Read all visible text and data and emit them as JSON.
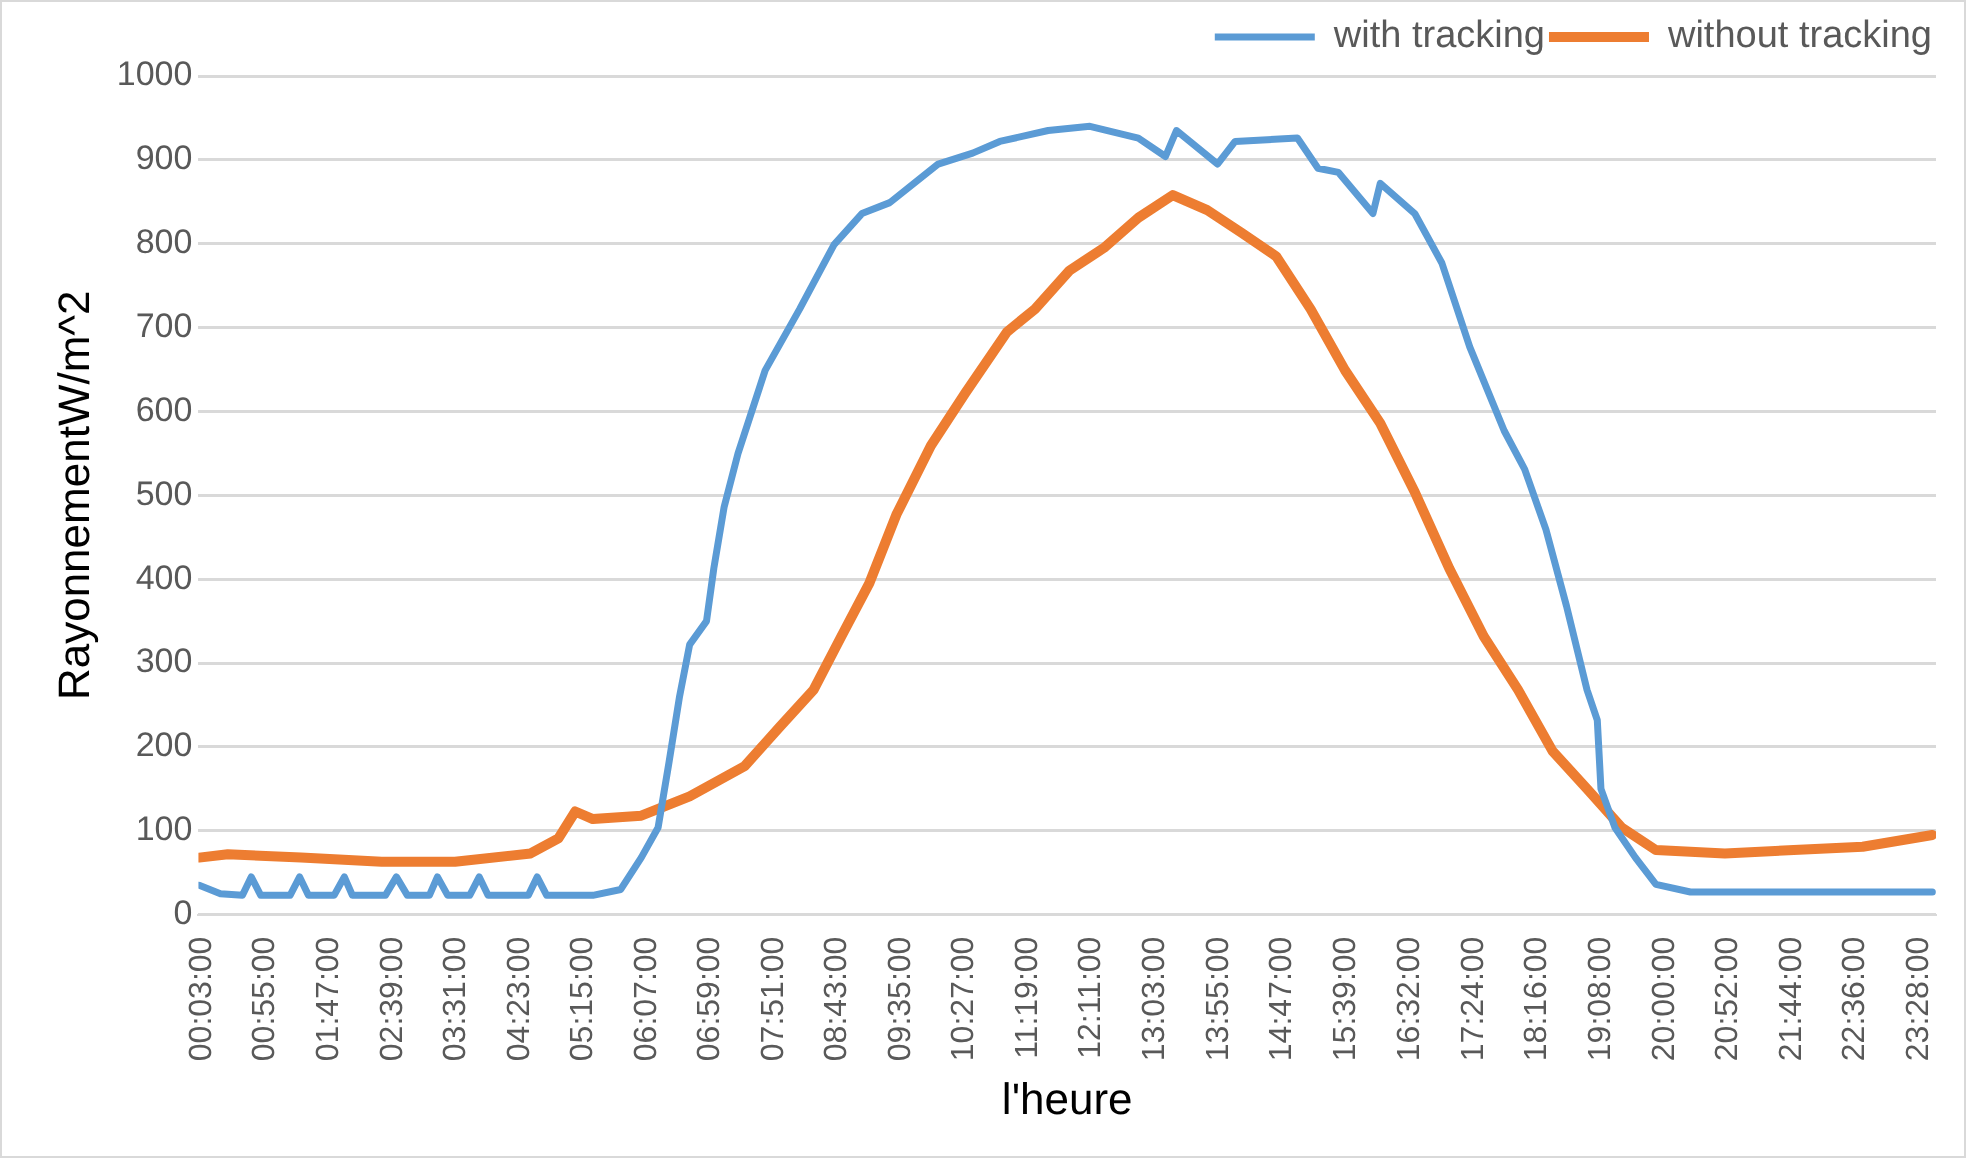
{
  "chart_data": {
    "type": "line",
    "xlabel": "l'heure",
    "ylabel": "RayonnementW/m^2",
    "xlim": [
      0,
      23.7
    ],
    "ylim": [
      0,
      1000
    ],
    "xticks": [
      {
        "value": 0.05,
        "label": "00:03:00"
      },
      {
        "value": 0.9167,
        "label": "00:55:00"
      },
      {
        "value": 1.7833,
        "label": "01:47:00"
      },
      {
        "value": 2.65,
        "label": "02:39:00"
      },
      {
        "value": 3.5167,
        "label": "03:31:00"
      },
      {
        "value": 4.3833,
        "label": "04:23:00"
      },
      {
        "value": 5.25,
        "label": "05:15:00"
      },
      {
        "value": 6.1167,
        "label": "06:07:00"
      },
      {
        "value": 6.9833,
        "label": "06:59:00"
      },
      {
        "value": 7.85,
        "label": "07:51:00"
      },
      {
        "value": 8.7167,
        "label": "08:43:00"
      },
      {
        "value": 9.5833,
        "label": "09:35:00"
      },
      {
        "value": 10.45,
        "label": "10:27:00"
      },
      {
        "value": 11.3167,
        "label": "11:19:00"
      },
      {
        "value": 12.1833,
        "label": "12:11:00"
      },
      {
        "value": 13.05,
        "label": "13:03:00"
      },
      {
        "value": 13.9167,
        "label": "13:55:00"
      },
      {
        "value": 14.7833,
        "label": "14:47:00"
      },
      {
        "value": 15.65,
        "label": "15:39:00"
      },
      {
        "value": 16.5333,
        "label": "16:32:00"
      },
      {
        "value": 17.4,
        "label": "17:24:00"
      },
      {
        "value": 18.2667,
        "label": "18:16:00"
      },
      {
        "value": 19.1333,
        "label": "19:08:00"
      },
      {
        "value": 20,
        "label": "20:00:00"
      },
      {
        "value": 20.8667,
        "label": "20:52:00"
      },
      {
        "value": 21.7333,
        "label": "21:44:00"
      },
      {
        "value": 22.6,
        "label": "22:36:00"
      },
      {
        "value": 23.4667,
        "label": "23:28:00"
      }
    ],
    "yticks": [
      0,
      100,
      200,
      300,
      400,
      500,
      600,
      700,
      800,
      900,
      1000
    ],
    "grid": "y",
    "legend": "top right",
    "marker": "none",
    "line_style": "solid",
    "series": [
      {
        "name": "with tracking",
        "color": "#5b9bd5",
        "x": [
          0.01,
          0.3,
          0.6,
          0.72,
          0.85,
          1.25,
          1.38,
          1.5,
          1.85,
          1.99,
          2.1,
          2.55,
          2.7,
          2.85,
          3.15,
          3.26,
          3.4,
          3.7,
          3.83,
          3.95,
          4.5,
          4.62,
          4.75,
          5.38,
          5.76,
          6.04,
          6.27,
          6.41,
          6.56,
          6.7,
          6.93,
          7.03,
          7.17,
          7.36,
          7.73,
          8.2,
          8.67,
          9.05,
          9.43,
          10.09,
          10.56,
          10.93,
          11.59,
          12.16,
          12.82,
          13.19,
          13.34,
          13.9,
          14.14,
          14.99,
          15.27,
          15.55,
          16.02,
          16.12,
          16.59,
          16.96,
          17.34,
          17.81,
          18.09,
          18.38,
          18.66,
          18.94,
          19.08,
          19.13,
          19.32,
          19.6,
          19.88,
          20.35,
          23.65
        ],
        "values": [
          35,
          25,
          23,
          45,
          23,
          23,
          45,
          23,
          23,
          45,
          23,
          23,
          45,
          23,
          23,
          45,
          23,
          23,
          45,
          23,
          23,
          45,
          23,
          23,
          30,
          68,
          104,
          177,
          259,
          322,
          350,
          413,
          486,
          550,
          649,
          722,
          799,
          836,
          849,
          895,
          908,
          922,
          935,
          940,
          926,
          904,
          935,
          895,
          922,
          926,
          890,
          885,
          836,
          872,
          836,
          777,
          677,
          577,
          531,
          459,
          368,
          268,
          232,
          150,
          104,
          68,
          36,
          27,
          27
        ]
      },
      {
        "name": "without tracking",
        "color": "#ed7d31",
        "x": [
          0.01,
          0.4,
          1.4,
          2.5,
          3.5,
          4.53,
          4.91,
          5.14,
          5.38,
          6.04,
          6.7,
          7.45,
          7.92,
          8.39,
          8.77,
          9.15,
          9.52,
          9.99,
          10.46,
          11.03,
          11.41,
          11.88,
          12.35,
          12.82,
          13.29,
          13.76,
          14.23,
          14.7,
          15.17,
          15.64,
          16.12,
          16.59,
          17.06,
          17.53,
          18.0,
          18.47,
          18.94,
          19.41,
          19.88,
          20.82,
          21.76,
          22.7,
          23.65
        ],
        "values": [
          68,
          72,
          68,
          63,
          63,
          73,
          91,
          123,
          114,
          118,
          141,
          177,
          223,
          268,
          332,
          395,
          477,
          559,
          622,
          695,
          722,
          768,
          795,
          831,
          858,
          840,
          813,
          785,
          722,
          649,
          586,
          504,
          413,
          332,
          268,
          195,
          150,
          104,
          77,
          73,
          77,
          81,
          95
        ]
      }
    ]
  }
}
